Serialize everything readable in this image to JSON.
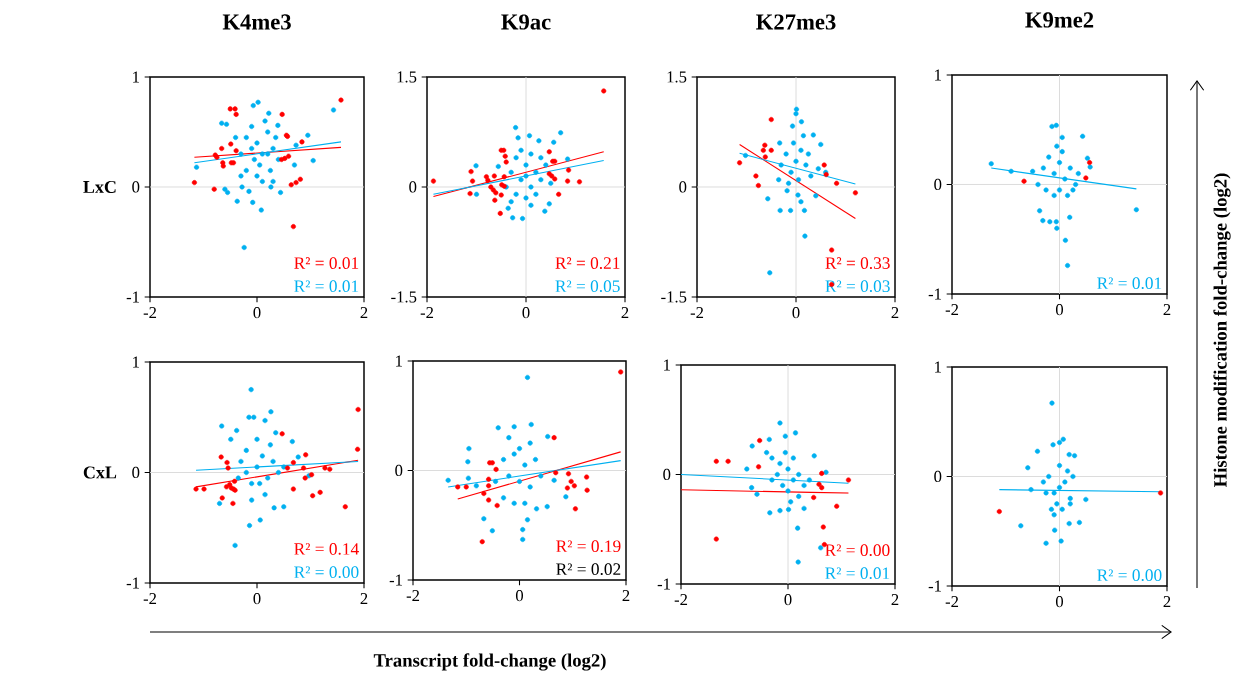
{
  "chart_data": [
    {
      "type": "scatter",
      "title": "K4me3",
      "ylabel": "LxC",
      "xlim": [
        -2,
        2
      ],
      "ylim": [
        -1,
        1
      ],
      "xticks": [
        -2,
        0,
        2
      ],
      "yticks": [
        -1,
        0,
        1
      ],
      "marker": "circle",
      "ref_lines": [
        {
          "axis": "y",
          "value": 0,
          "color": "#d9d9d9"
        }
      ],
      "series": [
        {
          "type": "scatter",
          "color": "#00b0f0",
          "x": [
            -1.13,
            -0.24,
            -0.08,
            0.08,
            -0.37,
            0.44,
            1.05,
            0.95,
            1.43,
            -0.66,
            -0.57,
            -0.6,
            -0.55,
            0.02,
            -0.07,
            0.22,
            0.39,
            0.73,
            0.7,
            -0.28,
            -0.15,
            0.26,
            -0.3,
            -0.2,
            -0.1,
            0,
            0.1,
            0.2,
            0.3,
            -0.2,
            0.05,
            0.25,
            -0.1,
            0.15,
            0.35,
            -0.4,
            0,
            0.1,
            -0.05,
            0.2,
            0.4,
            -0.3,
            0.3
          ],
          "values": [
            0.18,
            -0.55,
            -0.14,
            -0.21,
            -0.13,
            -0.05,
            0.24,
            0.47,
            0.7,
            0.58,
            0.57,
            -0.02,
            -0.05,
            0.77,
            0.74,
            0.67,
            0.56,
            0.38,
            0.2,
            0,
            -0.04,
            0,
            0.3,
            0.45,
            0.55,
            0.4,
            0.3,
            0.5,
            0.35,
            0.15,
            0.2,
            0.15,
            0.35,
            0.6,
            0.45,
            0.45,
            0.1,
            0.05,
            0.25,
            0.3,
            0.25,
            0.1,
            0.05
          ]
        },
        {
          "type": "scatter",
          "color": "#ff0000",
          "x": [
            -1.17,
            -0.8,
            -0.78,
            -0.75,
            -0.66,
            -0.64,
            -0.63,
            -0.5,
            -0.41,
            -0.39,
            -0.49,
            -0.48,
            -0.44,
            -0.39,
            0.47,
            0.55,
            0.57,
            0.84,
            0.46,
            0.52,
            0.59,
            0.64,
            0.73,
            0.81,
            0.68,
            1.57
          ],
          "values": [
            0.04,
            -0.02,
            0.29,
            0.27,
            0.35,
            0.22,
            0.19,
            0.71,
            0.71,
            0.66,
            0.39,
            0.22,
            0.22,
            0.33,
            0.66,
            0.47,
            0.46,
            0.41,
            0.25,
            0.26,
            0.28,
            0.02,
            0.04,
            0.07,
            -0.36,
            0.79
          ]
        },
        {
          "type": "line",
          "marker": "none",
          "name": "R² = 0.01",
          "color": "#ff0000",
          "x": [
            -1.17,
            1.57
          ],
          "values": [
            0.27,
            0.36
          ]
        },
        {
          "type": "line",
          "marker": "none",
          "name": "R² = 0.01",
          "color": "#00b0f0",
          "x": [
            -1.17,
            1.57
          ],
          "values": [
            0.22,
            0.41
          ]
        }
      ]
    },
    {
      "type": "scatter",
      "title": "K9ac",
      "xlim": [
        -2,
        2
      ],
      "ylim": [
        -1.5,
        1.5
      ],
      "xticks": [
        -2,
        0,
        2
      ],
      "yticks": [
        -1.5,
        0,
        1.5
      ],
      "marker": "circle",
      "ref_lines": [
        {
          "axis": "y",
          "value": 0,
          "color": "#d9d9d9"
        },
        {
          "axis": "x",
          "value": 0,
          "color": "#d9d9d9"
        }
      ],
      "series": [
        {
          "type": "scatter",
          "color": "#00b0f0",
          "x": [
            -1.01,
            -1.0,
            -0.21,
            -0.16,
            0.07,
            0.26,
            0.7,
            0.56,
            0.84,
            -0.27,
            -0.07,
            0.38,
            0.47,
            -0.36,
            -0.56,
            -0.3,
            -0.2,
            -0.1,
            0,
            0.1,
            0.2,
            0.3,
            -0.2,
            0,
            0.2,
            0.4,
            -0.4,
            0.1,
            -0.1,
            0.3,
            0.5,
            -0.3,
            0.1,
            0
          ],
          "values": [
            0.29,
            -0.1,
            0.81,
            0.67,
            0.7,
            0.63,
            0.74,
            0.61,
            0.38,
            -0.42,
            -0.43,
            -0.33,
            -0.23,
            -0.29,
            0.28,
            0.2,
            0.4,
            0.1,
            0.3,
            0,
            0.2,
            0.1,
            -0.1,
            -0.15,
            -0.1,
            0.3,
            0,
            0.45,
            0.5,
            0.4,
            0.05,
            -0.2,
            -0.25,
            0.15
          ]
        },
        {
          "type": "scatter",
          "color": "#ff0000",
          "x": [
            -1.87,
            -1.11,
            -1.08,
            -1.13,
            -0.8,
            -0.77,
            -0.64,
            -0.71,
            -0.66,
            -0.61,
            -0.63,
            -0.52,
            -0.5,
            -0.49,
            -0.44,
            -0.5,
            -0.45,
            -0.42,
            -0.4,
            -0.44,
            0.47,
            0.54,
            0.58,
            0.47,
            0.52,
            0.58,
            0.86,
            0.84,
            1.08,
            0.66,
            1.57
          ],
          "values": [
            0.08,
            0.21,
            0.08,
            -0.09,
            0.14,
            0.09,
            0.15,
            0,
            -0.04,
            -0.08,
            -0.18,
            -0.36,
            -0.11,
            0.03,
            0.01,
            0.5,
            0.5,
            0.42,
            0.34,
            0.14,
            0.48,
            0.35,
            0.35,
            0.18,
            0.15,
            0.11,
            0.23,
            0.08,
            0.07,
            -0.1,
            1.31
          ]
        },
        {
          "type": "line",
          "marker": "none",
          "name": "R² = 0.21",
          "color": "#ff0000",
          "x": [
            -1.87,
            1.57
          ],
          "values": [
            -0.13,
            0.48
          ]
        },
        {
          "type": "line",
          "marker": "none",
          "name": "R² = 0.05",
          "color": "#00b0f0",
          "x": [
            -1.87,
            1.57
          ],
          "values": [
            -0.1,
            0.36
          ]
        }
      ]
    },
    {
      "type": "scatter",
      "title": "K27me3",
      "xlim": [
        -2,
        2
      ],
      "ylim": [
        -1.5,
        1.5
      ],
      "xticks": [
        -2,
        0,
        2
      ],
      "yticks": [
        -1.5,
        0,
        1.5
      ],
      "marker": "circle",
      "ref_lines": [
        {
          "axis": "y",
          "value": 0,
          "color": "#d9d9d9"
        },
        {
          "axis": "x",
          "value": 0,
          "color": "#d9d9d9"
        }
      ],
      "series": [
        {
          "type": "scatter",
          "color": "#00b0f0",
          "x": [
            -1.02,
            -0.53,
            0.18,
            0.01,
            0,
            0.11,
            -0.07,
            0.35,
            0.5,
            -0.33,
            -0.57,
            -0.32,
            -0.11,
            0.17,
            0.4,
            -0.18,
            0.04,
            -0.3,
            -0.2,
            -0.1,
            0,
            0.1,
            0.2,
            0.3,
            -0.15,
            0.05,
            0.25,
            -0.35,
            0.1,
            0.45,
            0.6,
            -0.05,
            0.15
          ],
          "values": [
            0.43,
            -1.17,
            -0.67,
            1.06,
            1.0,
            0.89,
            0.83,
            0.71,
            0.58,
            0.6,
            -0.16,
            -0.32,
            -0.32,
            -0.32,
            -0.12,
            -0.05,
            -0.11,
            0.3,
            0.45,
            0.2,
            0.35,
            0.5,
            0.3,
            0.15,
            0.05,
            0.1,
            0.45,
            0.1,
            -0.2,
            0.25,
            0.2,
            0.6,
            0.7
          ]
        },
        {
          "type": "scatter",
          "color": "#ff0000",
          "x": [
            -1.14,
            -0.81,
            -0.76,
            -0.63,
            -0.66,
            -0.62,
            -0.5,
            -0.5,
            0.57,
            0.61,
            0.82,
            1.2,
            0.72,
            0.72
          ],
          "values": [
            0.33,
            0.15,
            0.02,
            0.57,
            0.5,
            0.41,
            0.5,
            0.92,
            0.3,
            0.17,
            0.05,
            -0.08,
            -0.86,
            -1.33
          ]
        },
        {
          "type": "line",
          "marker": "none",
          "name": "R² = 0.33",
          "color": "#ff0000",
          "x": [
            -1.14,
            1.2
          ],
          "values": [
            0.58,
            -0.43
          ]
        },
        {
          "type": "line",
          "marker": "none",
          "name": "R² = 0.03",
          "color": "#00b0f0",
          "x": [
            -1.14,
            1.2
          ],
          "values": [
            0.46,
            0.04
          ]
        }
      ]
    },
    {
      "type": "scatter",
      "title": "K9me2",
      "xlim": [
        -2,
        2
      ],
      "ylim": [
        -1,
        1
      ],
      "xticks": [
        -2,
        0,
        2
      ],
      "yticks": [
        -1,
        0,
        1
      ],
      "marker": "circle",
      "ref_lines": [
        {
          "axis": "y",
          "value": 0,
          "color": "#d9d9d9"
        },
        {
          "axis": "x",
          "value": 0,
          "color": "#d9d9d9"
        }
      ],
      "series": [
        {
          "type": "scatter",
          "color": "#00b0f0",
          "x": [
            -1.27,
            -0.9,
            -0.14,
            -0.06,
            0.05,
            0.43,
            1.43,
            0.15,
            0.11,
            0.19,
            -0.37,
            -0.31,
            -0.18,
            -0.06,
            -0.05,
            0.57,
            0.52,
            -0.3,
            -0.2,
            -0.1,
            0,
            0.1,
            0.2,
            0.3,
            -0.4,
            -0.25,
            -0.1,
            0,
            0.15,
            0.35,
            -0.05,
            0.05,
            -0.5,
            0.25
          ],
          "values": [
            0.19,
            0.12,
            0.53,
            0.54,
            0.43,
            0.44,
            -0.23,
            -0.74,
            -0.51,
            -0.3,
            -0.24,
            -0.33,
            -0.34,
            -0.34,
            -0.4,
            0.16,
            0.24,
            0.15,
            0.25,
            0.1,
            0.2,
            0.05,
            0.15,
            0,
            0,
            -0.05,
            -0.1,
            -0.05,
            -0.1,
            0.1,
            0.35,
            0.3,
            0.12,
            -0.05
          ]
        },
        {
          "type": "scatter",
          "color": "#ff0000",
          "x": [
            -0.66,
            0.49,
            0.56
          ],
          "values": [
            0.03,
            0.06,
            0.2
          ]
        },
        {
          "type": "line",
          "marker": "none",
          "name": "R² = 0.01",
          "color": "#00b0f0",
          "x": [
            -1.27,
            1.43
          ],
          "values": [
            0.15,
            -0.04
          ]
        }
      ]
    },
    {
      "type": "scatter",
      "ylabel": "CxL",
      "xlim": [
        -2,
        2
      ],
      "ylim": [
        -1,
        1
      ],
      "xticks": [
        -2,
        0,
        2
      ],
      "yticks": [
        -1,
        0,
        1
      ],
      "marker": "circle",
      "ref_lines": [
        {
          "axis": "y",
          "value": 0,
          "color": "#d9d9d9"
        }
      ],
      "series": [
        {
          "type": "scatter",
          "color": "#00b0f0",
          "x": [
            -0.11,
            -0.41,
            -0.14,
            0.06,
            0.26,
            -0.66,
            -0.7,
            0.5,
            0.32,
            0.66,
            0.77,
            0.97,
            -0.15,
            -0.06,
            0.15,
            -0.38,
            -0.49,
            0.35,
            -0.3,
            -0.2,
            -0.1,
            0,
            0.1,
            0.2,
            0.3,
            -0.2,
            0,
            0.15,
            -0.1,
            0.4,
            -0.35,
            0.05,
            0.25,
            0.5
          ],
          "values": [
            0.75,
            -0.66,
            -0.48,
            -0.43,
            0.55,
            0.42,
            -0.28,
            -0.31,
            -0.32,
            0.28,
            0.14,
            -0.03,
            0.5,
            0.5,
            0.47,
            0.38,
            0.3,
            0.36,
            0.1,
            0,
            -0.1,
            0.05,
            0.15,
            -0.05,
            0.1,
            0.2,
            0.3,
            -0.2,
            -0.25,
            0,
            -0.05,
            -0.1,
            0.25,
            0.05
          ]
        },
        {
          "type": "scatter",
          "color": "#ff0000",
          "x": [
            -1.14,
            -0.99,
            -0.67,
            -0.65,
            -0.56,
            -0.54,
            -0.57,
            -0.51,
            -0.48,
            -0.44,
            -0.41,
            -0.45,
            -0.42,
            0.47,
            0.68,
            0.68,
            0.57,
            0.87,
            0.9,
            0.91,
            1.02,
            1.04,
            1.18,
            1.27,
            1.36,
            1.65,
            1.89,
            1.88
          ],
          "values": [
            -0.15,
            -0.15,
            0.14,
            -0.23,
            0.09,
            0.04,
            -0.13,
            -0.11,
            -0.14,
            -0.15,
            -0.16,
            -0.28,
            -0.08,
            0.35,
            0.09,
            -0.15,
            0.04,
            0.04,
            -0.05,
            0.16,
            -0.02,
            -0.21,
            -0.18,
            0.04,
            0.03,
            -0.31,
            0.57,
            0.21
          ]
        },
        {
          "type": "line",
          "marker": "none",
          "name": "R² = 0.14",
          "color": "#ff0000",
          "x": [
            -1.14,
            1.89
          ],
          "values": [
            -0.13,
            0.11
          ]
        },
        {
          "type": "line",
          "marker": "none",
          "name": "R² = 0.00",
          "color": "#00b0f0",
          "x": [
            -1.14,
            1.89
          ],
          "values": [
            0.02,
            0.1
          ]
        }
      ]
    },
    {
      "type": "scatter",
      "xlim": [
        -2,
        2
      ],
      "ylim": [
        -1,
        1
      ],
      "xticks": [
        -2,
        0,
        2
      ],
      "yticks": [
        -1,
        0,
        1
      ],
      "marker": "circle",
      "ref_lines": [
        {
          "axis": "y",
          "value": 0,
          "color": "#d9d9d9"
        }
      ],
      "annotations": [
        "R² = 0.02"
      ],
      "series": [
        {
          "type": "scatter",
          "color": "#00b0f0",
          "x": [
            -1.34,
            -0.95,
            -0.97,
            -0.96,
            -0.81,
            -0.67,
            -0.51,
            0.06,
            0.06,
            0.15,
            0.22,
            -0.4,
            -0.1,
            0.53,
            0.87,
            0.65,
            0.52,
            0.32,
            -0.3,
            -0.2,
            -0.1,
            0,
            0.1,
            0.2,
            0.3,
            -0.3,
            -0.1,
            0.1,
            0,
            0.2,
            -0.2,
            0.4,
            -0.45,
            0.15
          ],
          "values": [
            -0.09,
            0.2,
            0.08,
            -0.07,
            -0.14,
            -0.44,
            -0.55,
            -0.54,
            -0.63,
            0.85,
            0.42,
            0.39,
            0.4,
            0.31,
            -0.24,
            -0.09,
            -0.33,
            -0.35,
            0.1,
            -0.05,
            0.15,
            -0.1,
            0.05,
            -0.15,
            0.1,
            -0.25,
            -0.3,
            -0.3,
            0.2,
            0.25,
            0.3,
            -0.05,
            -0.1,
            -0.45
          ]
        },
        {
          "type": "scatter",
          "color": "#ff0000",
          "x": [
            -1.16,
            -1.0,
            -0.67,
            -0.58,
            -0.58,
            -0.58,
            -0.56,
            -0.51,
            -0.44,
            -0.42,
            -0.7,
            0.65,
            0.68,
            0.92,
            0.9,
            0.97,
            1.03,
            1.05,
            1.26,
            1.27,
            1.9
          ],
          "values": [
            -0.15,
            -0.15,
            -0.21,
            -0.08,
            -0.14,
            -0.27,
            0.07,
            0.07,
            0.01,
            -0.32,
            -0.65,
            0.3,
            -0.02,
            -0.03,
            -0.16,
            -0.1,
            -0.14,
            -0.35,
            -0.06,
            -0.18,
            0.9
          ]
        },
        {
          "type": "line",
          "marker": "none",
          "name": "R² = 0.19",
          "color": "#ff0000",
          "x": [
            -1.16,
            1.9
          ],
          "values": [
            -0.26,
            0.17
          ]
        },
        {
          "type": "line",
          "marker": "none",
          "color": "#00b0f0",
          "x": [
            -1.34,
            1.9
          ],
          "values": [
            -0.15,
            0.09
          ]
        }
      ]
    },
    {
      "type": "scatter",
      "xlim": [
        -2,
        2
      ],
      "ylim": [
        -1,
        1
      ],
      "xticks": [
        -2,
        0,
        2
      ],
      "yticks": [
        -1,
        0,
        1
      ],
      "marker": "circle",
      "ref_lines": [
        {
          "axis": "y",
          "value": 0,
          "color": "#d9d9d9"
        },
        {
          "axis": "x",
          "value": 0,
          "color": "#d9d9d9"
        }
      ],
      "series": [
        {
          "type": "scatter",
          "color": "#00b0f0",
          "x": [
            -0.15,
            0.14,
            -0.05,
            -0.67,
            -0.77,
            -0.68,
            -0.58,
            -0.34,
            -0.15,
            0.01,
            0.3,
            0.18,
            0.19,
            0.61,
            0.49,
            0.71,
            -0.35,
            -0.3,
            -0.2,
            -0.1,
            0,
            0.1,
            0.2,
            0.3,
            -0.15,
            0,
            0.2,
            -0.3,
            0.4,
            -0.05,
            0.1,
            -0.4,
            0.05
          ],
          "values": [
            0.47,
            0.38,
            0.35,
            0.26,
            0.05,
            -0.12,
            -0.18,
            -0.35,
            -0.33,
            -0.32,
            -0.31,
            -0.49,
            -0.8,
            -0.67,
            0.17,
            0.02,
            0.32,
            0.15,
            0,
            -0.1,
            0.05,
            -0.05,
            0,
            -0.1,
            0.1,
            -0.15,
            -0.2,
            -0.05,
            -0.05,
            0.2,
            0.15,
            0.2,
            -0.25
          ]
        },
        {
          "type": "scatter",
          "color": "#ff0000",
          "x": [
            -1.34,
            -1.12,
            -0.53,
            -0.55,
            -1.34,
            0.48,
            0.58,
            0.63,
            0.63,
            0.91,
            0.66,
            0.68,
            1.13
          ],
          "values": [
            0.12,
            0.12,
            0.31,
            0.07,
            -0.59,
            -0.21,
            -0.09,
            -0.12,
            0.01,
            -0.29,
            -0.48,
            -0.64,
            -0.05
          ]
        },
        {
          "type": "line",
          "marker": "none",
          "name": "R² = 0.00",
          "color": "#ff0000",
          "x": [
            -2,
            1.13
          ],
          "values": [
            -0.14,
            -0.17
          ]
        },
        {
          "type": "line",
          "marker": "none",
          "name": "R² = 0.01",
          "color": "#00b0f0",
          "x": [
            -2,
            1.13
          ],
          "values": [
            0,
            -0.08
          ]
        }
      ]
    },
    {
      "type": "scatter",
      "xlim": [
        -2,
        2
      ],
      "ylim": [
        -1,
        1
      ],
      "xticks": [
        -2,
        0,
        2
      ],
      "yticks": [
        -1,
        0,
        1
      ],
      "marker": "circle",
      "ref_lines": [
        {
          "axis": "y",
          "value": 0,
          "color": "#d9d9d9"
        },
        {
          "axis": "x",
          "value": 0,
          "color": "#d9d9d9"
        }
      ],
      "series": [
        {
          "type": "scatter",
          "color": "#00b0f0",
          "x": [
            -0.14,
            0.07,
            -0.12,
            0,
            -0.41,
            -0.72,
            -0.25,
            0.03,
            -0.09,
            0.37,
            0.18,
            0.49,
            0.18,
            0.28,
            -0.59,
            -0.53,
            -0.3,
            -0.2,
            -0.1,
            0,
            0.1,
            0.2,
            0.05,
            -0.05,
            -0.15,
            0.15,
            -0.25,
            0,
            0.2,
            -0.1,
            0.25
          ],
          "values": [
            0.67,
            0.34,
            0.29,
            0.31,
            0.23,
            -0.45,
            -0.61,
            -0.59,
            -0.49,
            -0.42,
            -0.43,
            -0.21,
            0.2,
            0.19,
            0.08,
            -0.12,
            -0.05,
            0,
            -0.15,
            -0.1,
            -0.05,
            -0.2,
            -0.3,
            -0.25,
            -0.3,
            0.05,
            -0.15,
            0.1,
            -0.25,
            -0.35,
            0
          ]
        },
        {
          "type": "scatter",
          "color": "#ff0000",
          "x": [
            -1.12,
            1.88
          ],
          "values": [
            -0.32,
            -0.15
          ]
        },
        {
          "type": "line",
          "marker": "none",
          "name": "R² = 0.00",
          "color": "#00b0f0",
          "x": [
            -1.12,
            1.88
          ],
          "values": [
            -0.12,
            -0.14
          ]
        }
      ]
    },
    {
      "type": "other",
      "xlabel": "Transcript fold-change (log2)",
      "y2label": "Histone modification fold-change (log2)"
    }
  ]
}
